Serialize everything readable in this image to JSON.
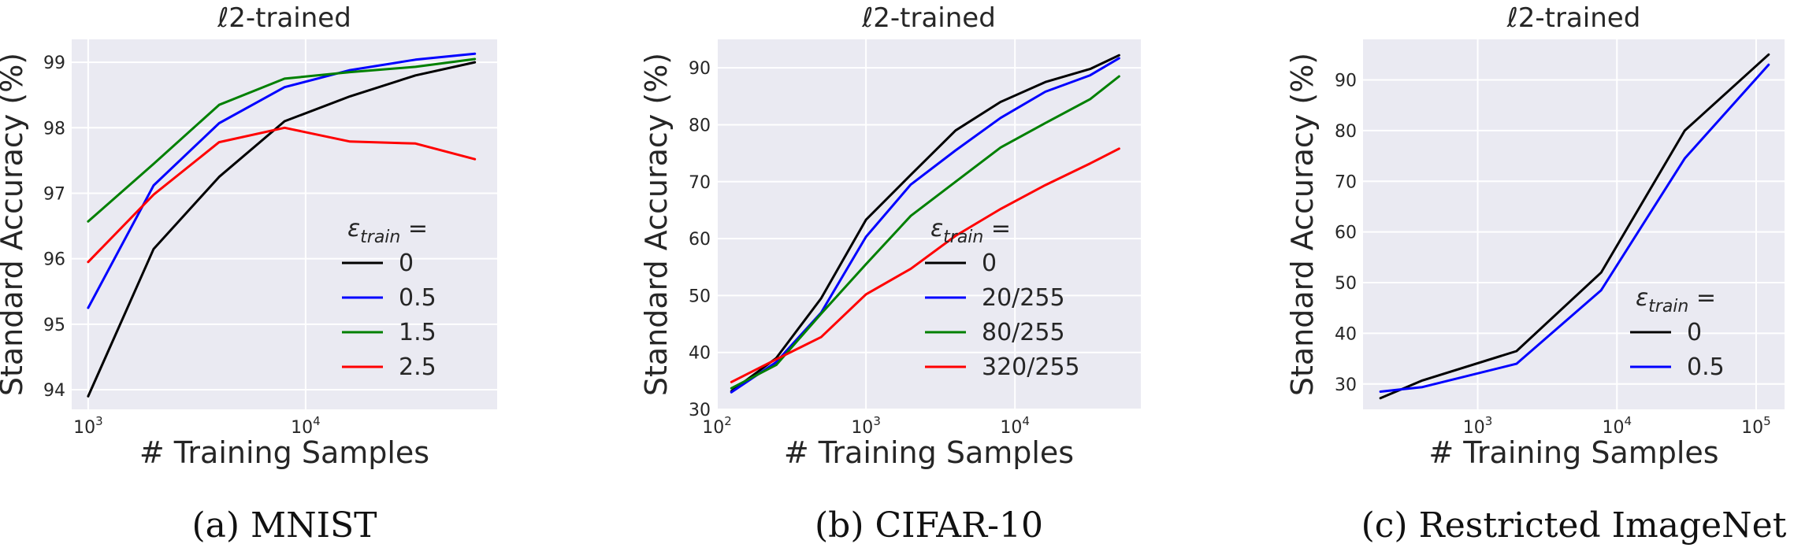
{
  "chart_data": [
    {
      "type": "line",
      "title": "ℓ2-trained",
      "xlabel": "# Training Samples",
      "ylabel": "Standard Accuracy (%)",
      "caption": "(a) MNIST",
      "x_scale": "log",
      "xlim": [
        840,
        76000
      ],
      "ylim": [
        93.7,
        99.35
      ],
      "x_ticks": [
        1000,
        10000
      ],
      "y_ticks": [
        94,
        95,
        96,
        97,
        98,
        99
      ],
      "grid": true,
      "legend": {
        "title": "εtrain =",
        "placement": "lower-right"
      },
      "series": [
        {
          "name": "0",
          "color": "#000000",
          "x": [
            1000,
            2000,
            4000,
            8000,
            16000,
            32000,
            60000
          ],
          "values": [
            93.9,
            96.15,
            97.25,
            98.1,
            98.48,
            98.8,
            99.0
          ]
        },
        {
          "name": "0.5",
          "color": "#0000ff",
          "x": [
            1000,
            2000,
            4000,
            8000,
            16000,
            32000,
            60000
          ],
          "values": [
            95.25,
            97.12,
            98.07,
            98.62,
            98.88,
            99.04,
            99.13
          ]
        },
        {
          "name": "1.5",
          "color": "#008000",
          "x": [
            1000,
            2000,
            4000,
            8000,
            16000,
            32000,
            60000
          ],
          "values": [
            96.57,
            97.45,
            98.35,
            98.75,
            98.85,
            98.93,
            99.05
          ]
        },
        {
          "name": "2.5",
          "color": "#ff0000",
          "x": [
            1000,
            2000,
            4000,
            8000,
            16000,
            32000,
            60000
          ],
          "values": [
            95.95,
            96.98,
            97.78,
            98.0,
            97.79,
            97.76,
            97.52
          ]
        }
      ]
    },
    {
      "type": "line",
      "title": "ℓ2-trained",
      "xlabel": "# Training Samples",
      "ylabel": "Standard Accuracy (%)",
      "caption": "(b) CIFAR-10",
      "x_scale": "log",
      "xlim": [
        100,
        70000
      ],
      "ylim": [
        30,
        95
      ],
      "x_ticks": [
        100,
        1000,
        10000
      ],
      "y_ticks": [
        30,
        40,
        50,
        60,
        70,
        80,
        90
      ],
      "grid": true,
      "legend": {
        "title": "εtrain =",
        "placement": "lower-right"
      },
      "series": [
        {
          "name": "0",
          "color": "#000000",
          "x": [
            125,
            250,
            500,
            1000,
            2000,
            4000,
            8000,
            16000,
            32000,
            50000
          ],
          "values": [
            33.2,
            39.0,
            49.5,
            63.3,
            71.2,
            79.0,
            84.0,
            87.5,
            89.8,
            92.2
          ]
        },
        {
          "name": "20/255",
          "color": "#0000ff",
          "x": [
            125,
            250,
            500,
            1000,
            2000,
            4000,
            8000,
            16000,
            32000,
            50000
          ],
          "values": [
            33.0,
            38.3,
            47.0,
            60.3,
            69.5,
            75.5,
            81.2,
            85.8,
            88.7,
            91.7
          ]
        },
        {
          "name": "80/255",
          "color": "#008000",
          "x": [
            125,
            250,
            500,
            1000,
            2000,
            4000,
            8000,
            16000,
            32000,
            50000
          ],
          "values": [
            33.7,
            37.8,
            46.8,
            55.5,
            64.0,
            70.0,
            76.0,
            80.3,
            84.5,
            88.5
          ]
        },
        {
          "name": "320/255",
          "color": "#ff0000",
          "x": [
            125,
            250,
            500,
            1000,
            2000,
            4000,
            8000,
            16000,
            32000,
            50000
          ],
          "values": [
            34.8,
            38.8,
            42.7,
            50.2,
            54.7,
            60.5,
            65.2,
            69.4,
            73.2,
            75.8
          ]
        }
      ]
    },
    {
      "type": "line",
      "title": "ℓ2-trained",
      "xlabel": "# Training Samples",
      "ylabel": "Standard Accuracy (%)",
      "caption": "(c) Restricted ImageNet",
      "x_scale": "log",
      "xlim": [
        150,
        160000
      ],
      "ylim": [
        25,
        98
      ],
      "x_ticks": [
        1000,
        10000,
        100000
      ],
      "y_ticks": [
        30,
        40,
        50,
        60,
        70,
        80,
        90
      ],
      "grid": true,
      "legend": {
        "title": "εtrain =",
        "placement": "lower-right"
      },
      "series": [
        {
          "name": "0",
          "color": "#000000",
          "x": [
            200,
            400,
            1900,
            7700,
            30700,
            123000
          ],
          "values": [
            27.2,
            30.7,
            36.5,
            52.0,
            80.0,
            95.0
          ]
        },
        {
          "name": "0.5",
          "color": "#0000ff",
          "x": [
            200,
            400,
            1900,
            7700,
            30700,
            123000
          ],
          "values": [
            28.5,
            29.4,
            34.0,
            48.5,
            74.5,
            93.0
          ]
        }
      ]
    }
  ]
}
